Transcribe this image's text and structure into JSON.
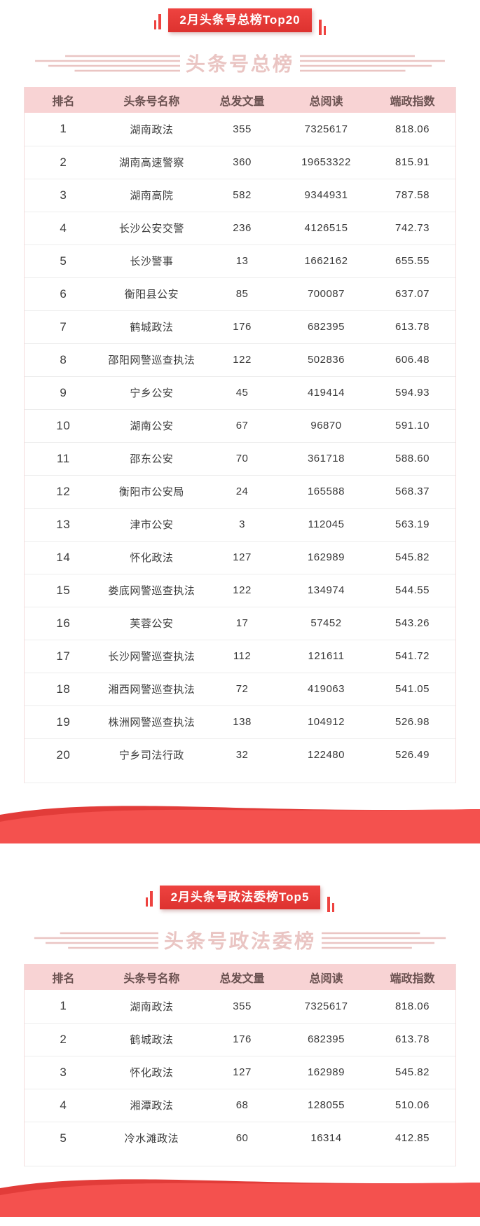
{
  "colors": {
    "banner_red": "#ee4340",
    "banner_red_dark": "#dd322f",
    "wave_red": "#f4514e",
    "wave_dark_red": "#e23c39",
    "header_pink": "#f8d3d4",
    "header_text": "#6a5150",
    "decor_pink": "#eac5c3",
    "row_text": "#3b3b3b"
  },
  "sections": [
    {
      "banner": "2月头条号总榜Top20",
      "title": "头条号总榜",
      "table": {
        "headers": [
          "排名",
          "头条号名称",
          "总发文量",
          "总阅读",
          "端政指数"
        ],
        "rows": [
          [
            "1",
            "湖南政法",
            "355",
            "7325617",
            "818.06"
          ],
          [
            "2",
            "湖南高速警察",
            "360",
            "19653322",
            "815.91"
          ],
          [
            "3",
            "湖南高院",
            "582",
            "9344931",
            "787.58"
          ],
          [
            "4",
            "长沙公安交警",
            "236",
            "4126515",
            "742.73"
          ],
          [
            "5",
            "长沙警事",
            "13",
            "1662162",
            "655.55"
          ],
          [
            "6",
            "衡阳县公安",
            "85",
            "700087",
            "637.07"
          ],
          [
            "7",
            "鹤城政法",
            "176",
            "682395",
            "613.78"
          ],
          [
            "8",
            "邵阳网警巡查执法",
            "122",
            "502836",
            "606.48"
          ],
          [
            "9",
            "宁乡公安",
            "45",
            "419414",
            "594.93"
          ],
          [
            "10",
            "湖南公安",
            "67",
            "96870",
            "591.10"
          ],
          [
            "11",
            "邵东公安",
            "70",
            "361718",
            "588.60"
          ],
          [
            "12",
            "衡阳市公安局",
            "24",
            "165588",
            "568.37"
          ],
          [
            "13",
            "津市公安",
            "3",
            "112045",
            "563.19"
          ],
          [
            "14",
            "怀化政法",
            "127",
            "162989",
            "545.82"
          ],
          [
            "15",
            "娄底网警巡查执法",
            "122",
            "134974",
            "544.55"
          ],
          [
            "16",
            "芙蓉公安",
            "17",
            "57452",
            "543.26"
          ],
          [
            "17",
            "长沙网警巡查执法",
            "112",
            "121611",
            "541.72"
          ],
          [
            "18",
            "湘西网警巡查执法",
            "72",
            "419063",
            "541.05"
          ],
          [
            "19",
            "株洲网警巡查执法",
            "138",
            "104912",
            "526.98"
          ],
          [
            "20",
            "宁乡司法行政",
            "32",
            "122480",
            "526.49"
          ]
        ]
      }
    },
    {
      "banner": "2月头条号政法委榜Top5",
      "title": "头条号政法委榜",
      "table": {
        "headers": [
          "排名",
          "头条号名称",
          "总发文量",
          "总阅读",
          "端政指数"
        ],
        "rows": [
          [
            "1",
            "湖南政法",
            "355",
            "7325617",
            "818.06"
          ],
          [
            "2",
            "鹤城政法",
            "176",
            "682395",
            "613.78"
          ],
          [
            "3",
            "怀化政法",
            "127",
            "162989",
            "545.82"
          ],
          [
            "4",
            "湘潭政法",
            "68",
            "128055",
            "510.06"
          ],
          [
            "5",
            "冷水滩政法",
            "60",
            "16314",
            "412.85"
          ]
        ]
      }
    }
  ]
}
